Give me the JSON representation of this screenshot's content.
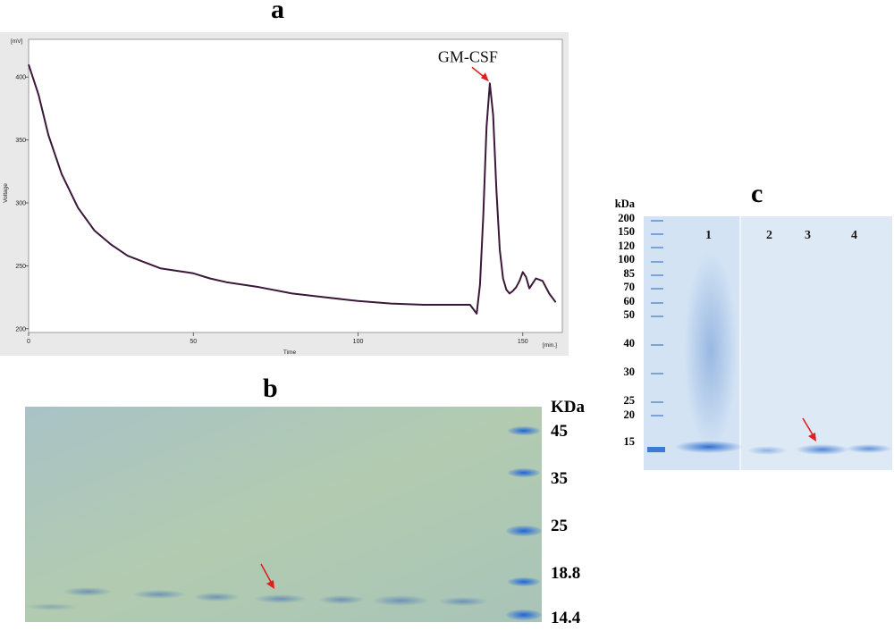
{
  "panels": {
    "a": {
      "label": "a"
    },
    "b": {
      "label": "b"
    },
    "c": {
      "label": "c"
    }
  },
  "chart_data": {
    "type": "line",
    "title": "",
    "unit_label": "[mV]",
    "xlabel": "Time",
    "ylabel": "Voltage",
    "x_unit_label": "[min.]",
    "xlim": [
      0,
      162
    ],
    "ylim": [
      197,
      430
    ],
    "x_ticks": [
      0,
      50,
      100,
      150
    ],
    "x_tick_labels": [
      "0",
      "50",
      "100",
      "150"
    ],
    "y_ticks": [
      200,
      250,
      300,
      350,
      400
    ],
    "y_tick_labels": [
      "200",
      "250",
      "300",
      "350",
      "400"
    ],
    "grid": false,
    "colors": {
      "line": "#3a1838",
      "plot_bg": "#ffffff",
      "outer_bg": "#e9e9e9",
      "arrow": "#e02020"
    },
    "series": [
      {
        "x": [
          0,
          3,
          6,
          10,
          15,
          20,
          25,
          30,
          35,
          40,
          45,
          50,
          55,
          60,
          70,
          80,
          90,
          100,
          110,
          120,
          130,
          134,
          136,
          137,
          138,
          139,
          140,
          141,
          142,
          143,
          144,
          145,
          146,
          147,
          148,
          149,
          150,
          151,
          152,
          154,
          156,
          158,
          160
        ],
        "y": [
          410,
          386,
          354,
          323,
          296,
          278,
          267,
          258,
          253,
          248,
          246,
          244,
          240,
          237,
          233,
          228,
          225,
          222,
          220,
          219,
          219,
          219,
          212,
          235,
          290,
          360,
          395,
          370,
          310,
          263,
          240,
          231,
          228,
          230,
          233,
          238,
          245,
          241,
          232,
          240,
          238,
          228,
          221
        ]
      }
    ],
    "annotations": [
      {
        "text": "GM-CSF",
        "x": 140,
        "y": 395
      }
    ]
  },
  "gel_b": {
    "mw_header": "KDa",
    "markers": [
      "45",
      "35",
      "25",
      "18.8",
      "14.4"
    ]
  },
  "gel_c": {
    "mw_header": "kDa",
    "markers": [
      "200",
      "150",
      "120",
      "100",
      "85",
      "70",
      "60",
      "50",
      "40",
      "30",
      "25",
      "20",
      "15"
    ],
    "lanes": [
      "1",
      "2",
      "3",
      "4"
    ]
  }
}
